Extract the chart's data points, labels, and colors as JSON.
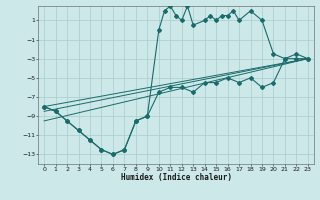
{
  "xlabel": "Humidex (Indice chaleur)",
  "bg_color": "#cce8e8",
  "grid_color": "#aacccc",
  "line_color": "#1a6b6b",
  "xlim": [
    -0.5,
    23.5
  ],
  "ylim": [
    -14,
    2.5
  ],
  "xticks": [
    0,
    1,
    2,
    3,
    4,
    5,
    6,
    7,
    8,
    9,
    10,
    11,
    12,
    13,
    14,
    15,
    16,
    17,
    18,
    19,
    20,
    21,
    22,
    23
  ],
  "yticks": [
    1,
    -1,
    -3,
    -5,
    -7,
    -9,
    -11,
    -13
  ],
  "main_x": [
    0,
    1,
    2,
    3,
    4,
    5,
    6,
    7,
    8,
    9,
    10,
    10.5,
    11,
    11.5,
    12,
    12.5,
    13,
    14,
    14.5,
    15,
    15.5,
    16,
    16.5,
    17,
    18,
    19,
    20,
    21,
    22,
    23
  ],
  "main_y": [
    -8,
    -8.5,
    -9.5,
    -10.5,
    -11.5,
    -12.5,
    -13,
    -12.5,
    -9.5,
    -9,
    0,
    2,
    2.5,
    1.5,
    1,
    2.5,
    0.5,
    1,
    1.5,
    1,
    1.5,
    1.5,
    2,
    1,
    2,
    1,
    -2.5,
    -3,
    -2.5,
    -3
  ],
  "line2_x": [
    0,
    1,
    2,
    3,
    4,
    5,
    6,
    7,
    8,
    9,
    10,
    11,
    12,
    13,
    14,
    15,
    16,
    17,
    18,
    19,
    20,
    21,
    22,
    23
  ],
  "line2_y": [
    -8,
    -8.5,
    -9.5,
    -10.5,
    -11.5,
    -12.5,
    -13,
    -12.5,
    -9.5,
    -9,
    -6.5,
    -6,
    -6,
    -6.5,
    -5.5,
    -5.5,
    -5,
    -5.5,
    -5,
    -6,
    -5.5,
    -3,
    -3,
    -3
  ],
  "line3_x": [
    0,
    23
  ],
  "line3_y": [
    -8,
    -3
  ],
  "line4_x": [
    0,
    23
  ],
  "line4_y": [
    -8.5,
    -3
  ],
  "line5_x": [
    0,
    23
  ],
  "line5_y": [
    -9.5,
    -3
  ]
}
